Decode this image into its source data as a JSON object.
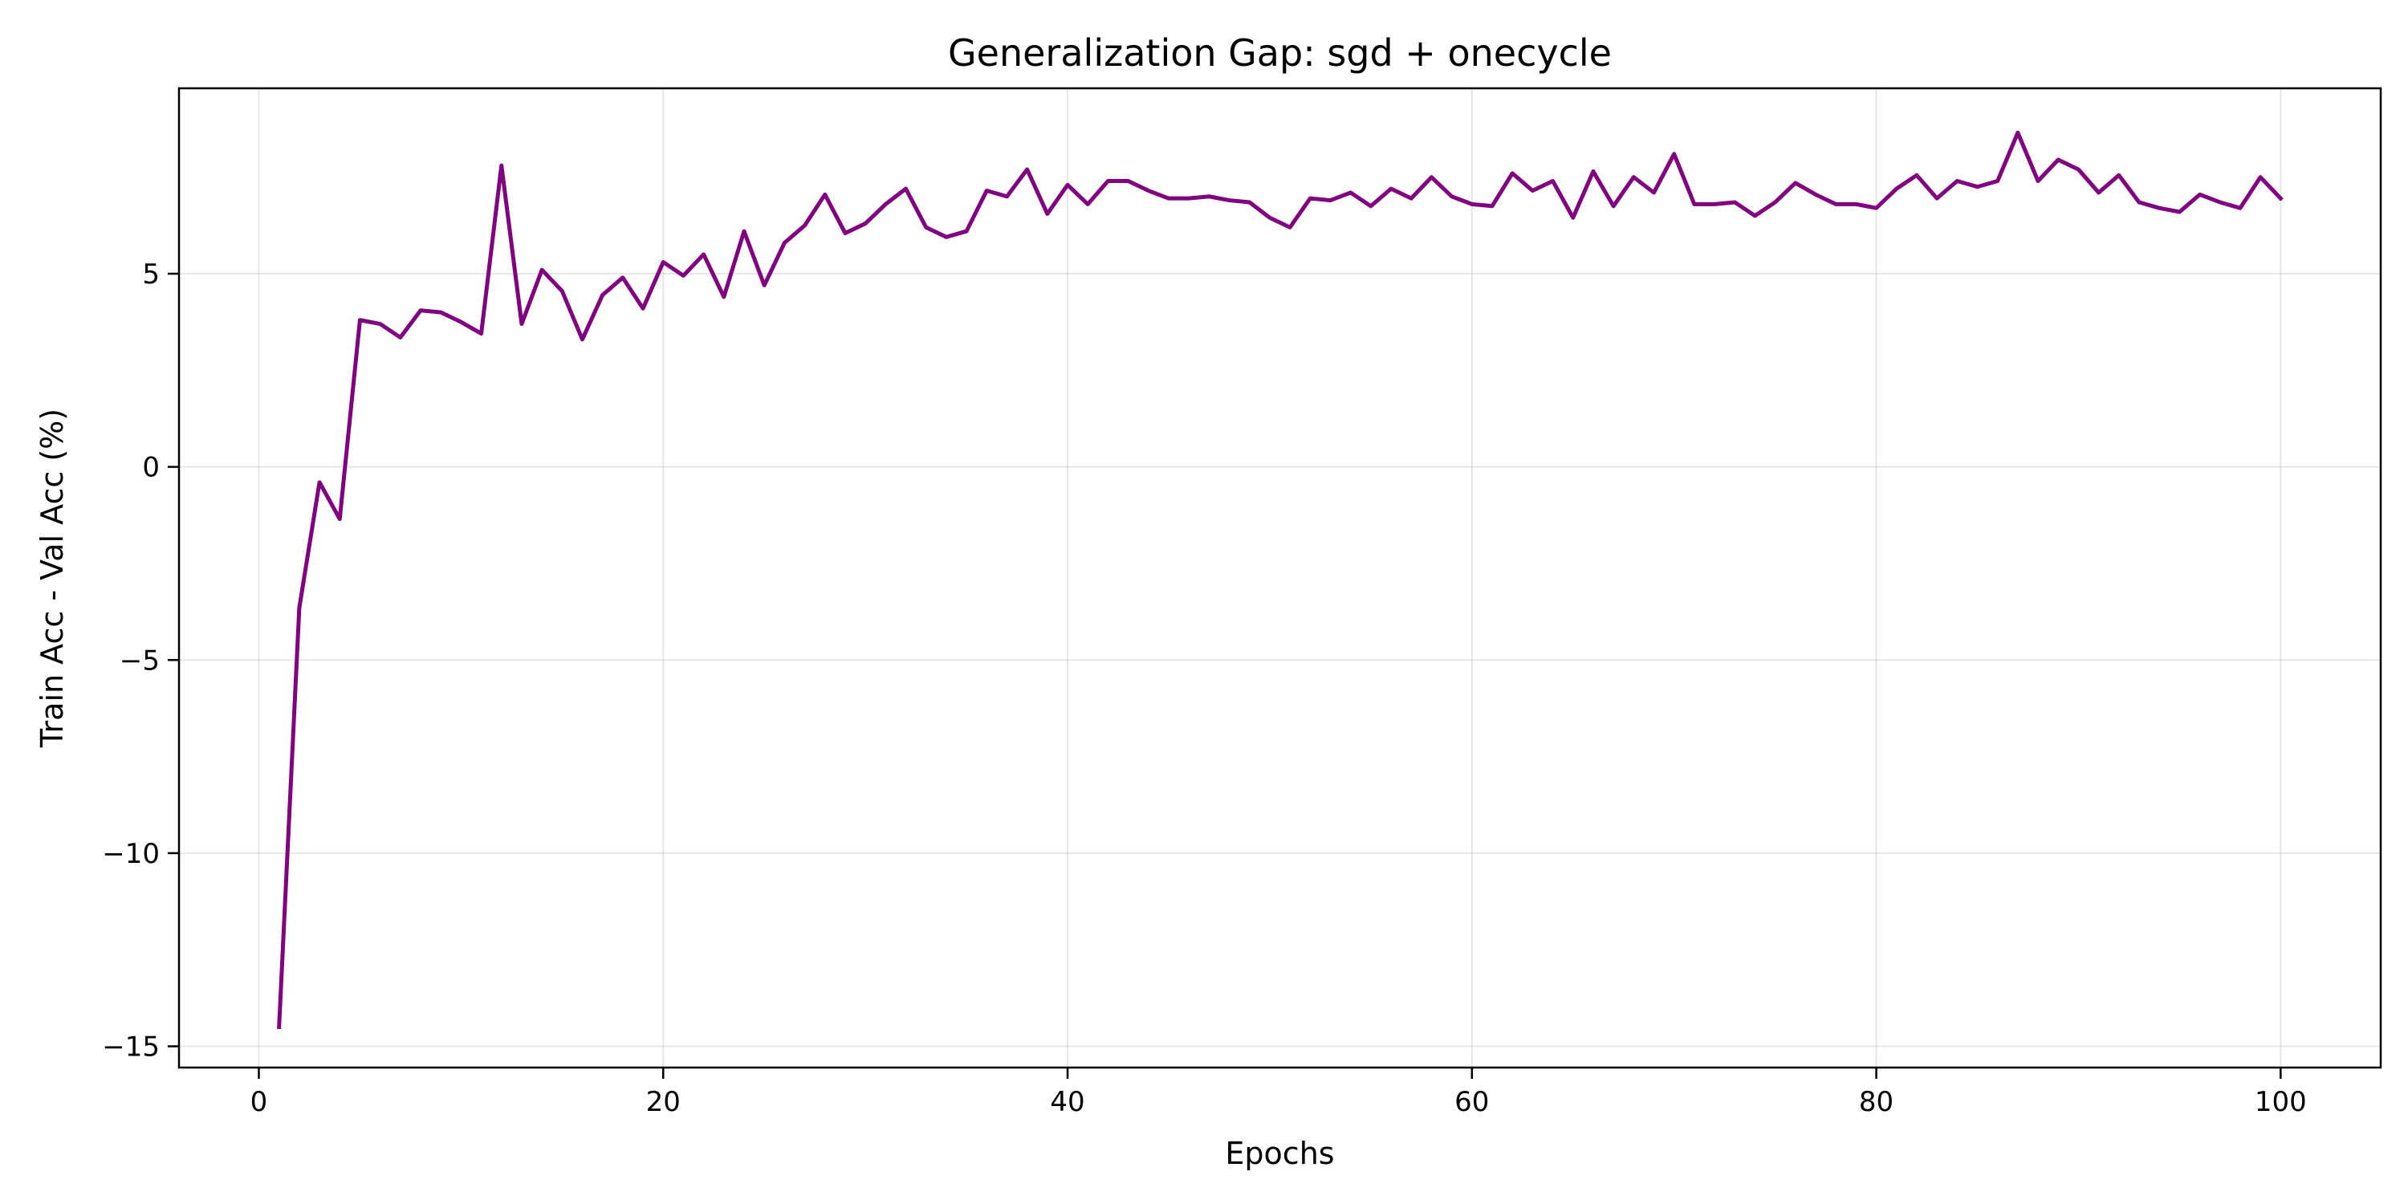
{
  "chart_data": {
    "type": "line",
    "title": "Generalization Gap: sgd + onecycle",
    "xlabel": "Epochs",
    "ylabel": "Train Acc - Val Acc (%)",
    "xlim": [
      -3.95,
      104.95
    ],
    "ylim": [
      -15.55,
      9.8
    ],
    "xticks": [
      0,
      20,
      40,
      60,
      80,
      100
    ],
    "xtick_labels": [
      "0",
      "20",
      "40",
      "60",
      "80",
      "100"
    ],
    "yticks": [
      -15,
      -10,
      -5,
      0,
      5
    ],
    "ytick_labels": [
      "−15",
      "−10",
      "−5",
      "0",
      "5"
    ],
    "grid": true,
    "legend": "none",
    "line_color": "#800080",
    "series": [
      {
        "x": [
          1,
          2,
          3,
          4,
          5,
          6,
          7,
          8,
          9,
          10,
          11,
          12,
          13,
          14,
          15,
          16,
          17,
          18,
          19,
          20,
          21,
          22,
          23,
          24,
          25,
          26,
          27,
          28,
          29,
          30,
          31,
          32,
          33,
          34,
          35,
          36,
          37,
          38,
          39,
          40,
          41,
          42,
          43,
          44,
          45,
          46,
          47,
          48,
          49,
          50,
          51,
          52,
          53,
          54,
          55,
          56,
          57,
          58,
          59,
          60,
          61,
          62,
          63,
          64,
          65,
          66,
          67,
          68,
          69,
          70,
          71,
          72,
          73,
          74,
          75,
          76,
          77,
          78,
          79,
          80,
          81,
          82,
          83,
          84,
          85,
          86,
          87,
          88,
          89,
          90,
          91,
          92,
          93,
          94,
          95,
          96,
          97,
          98,
          99,
          100
        ],
        "values": [
          -14.5,
          -3.65,
          -0.4,
          -1.35,
          3.8,
          3.7,
          3.35,
          4.05,
          4.0,
          3.75,
          3.45,
          7.8,
          3.7,
          5.1,
          4.55,
          3.3,
          4.45,
          4.9,
          4.1,
          5.3,
          4.95,
          5.5,
          4.4,
          6.1,
          4.7,
          5.8,
          6.25,
          7.05,
          6.05,
          6.3,
          6.8,
          7.2,
          6.2,
          5.95,
          6.1,
          7.15,
          7.0,
          7.7,
          6.55,
          7.3,
          6.8,
          7.4,
          7.4,
          7.15,
          6.95,
          6.95,
          7.0,
          6.9,
          6.85,
          6.45,
          6.2,
          6.95,
          6.9,
          7.1,
          6.75,
          7.2,
          6.95,
          7.5,
          7.0,
          6.8,
          6.75,
          7.6,
          7.15,
          7.4,
          6.45,
          7.65,
          6.75,
          7.5,
          7.1,
          8.1,
          6.8,
          6.8,
          6.85,
          6.5,
          6.85,
          7.35,
          7.05,
          6.8,
          6.8,
          6.7,
          7.2,
          7.55,
          6.95,
          7.4,
          7.25,
          7.4,
          8.65,
          7.4,
          7.95,
          7.7,
          7.1,
          7.55,
          6.85,
          6.7,
          6.6,
          7.05,
          6.85,
          6.7,
          7.5,
          6.95
        ]
      }
    ]
  }
}
